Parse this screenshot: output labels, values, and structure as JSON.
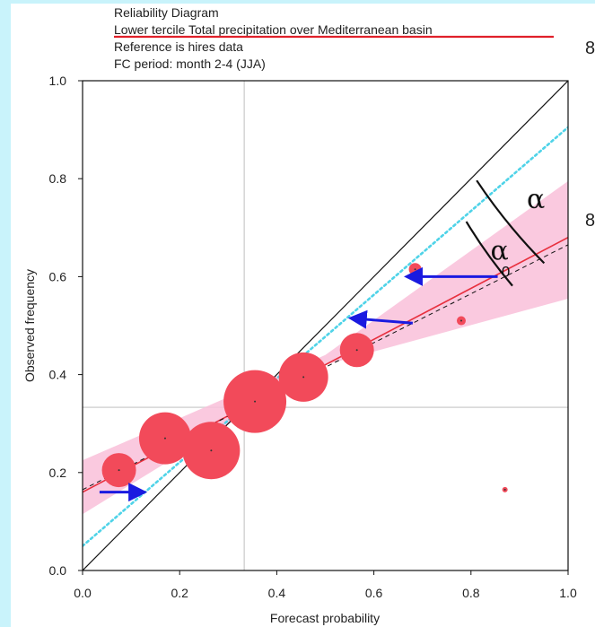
{
  "chart_data": {
    "type": "scatter",
    "title_lines": [
      "Reliability Diagram",
      "Lower tercile Total precipitation over Mediterranean basin",
      "Reference is hires data",
      "FC period: month 2-4 (JJA)"
    ],
    "xlabel": "Forecast probability",
    "ylabel": "Observed frequency",
    "xlim": [
      0,
      1
    ],
    "ylim": [
      0,
      1
    ],
    "xticks": [
      "0.0",
      "0.2",
      "0.4",
      "0.6",
      "0.8",
      "1.0"
    ],
    "yticks": [
      "0.0",
      "0.2",
      "0.4",
      "0.6",
      "0.8",
      "1.0"
    ],
    "climatology": 0.333,
    "points": [
      {
        "x": 0.075,
        "y": 0.205,
        "size": 0.38
      },
      {
        "x": 0.17,
        "y": 0.27,
        "size": 0.58
      },
      {
        "x": 0.265,
        "y": 0.245,
        "size": 0.64
      },
      {
        "x": 0.355,
        "y": 0.345,
        "size": 0.7
      },
      {
        "x": 0.455,
        "y": 0.395,
        "size": 0.55
      },
      {
        "x": 0.565,
        "y": 0.45,
        "size": 0.38
      },
      {
        "x": 0.685,
        "y": 0.615,
        "size": 0.14
      },
      {
        "x": 0.78,
        "y": 0.51,
        "size": 0.1
      },
      {
        "x": 0.87,
        "y": 0.165,
        "size": 0.04
      }
    ],
    "regression_line": {
      "x": [
        0,
        1
      ],
      "y": [
        0.16,
        0.68
      ]
    },
    "dashed_line": {
      "x": [
        0,
        1
      ],
      "y": [
        0.165,
        0.665
      ]
    },
    "confidence_band": {
      "x": [
        0,
        0.5,
        1
      ],
      "lower": [
        0.115,
        0.42,
        0.555
      ],
      "upper": [
        0.225,
        0.44,
        0.795
      ]
    },
    "dotted_line": {
      "x": [
        0,
        1
      ],
      "y": [
        0.05,
        0.905
      ]
    },
    "arrows": [
      {
        "from": [
          0.035,
          0.16
        ],
        "to": [
          0.125,
          0.16
        ]
      },
      {
        "from": [
          0.68,
          0.505
        ],
        "to": [
          0.555,
          0.515
        ]
      },
      {
        "from": [
          0.855,
          0.6
        ],
        "to": [
          0.67,
          0.6
        ]
      }
    ],
    "annotations": {
      "alpha": "α",
      "alpha_zero": "α",
      "alpha_zero_sub": "0"
    },
    "colors": {
      "points": "#f24a5a",
      "band": "#f9bfd9",
      "regression": "#e8303e",
      "dotted": "#4fd3e8",
      "arrows": "#1a1ae0",
      "title_underline": "#e0202a"
    }
  },
  "cut_text": [
    "8",
    "8"
  ]
}
